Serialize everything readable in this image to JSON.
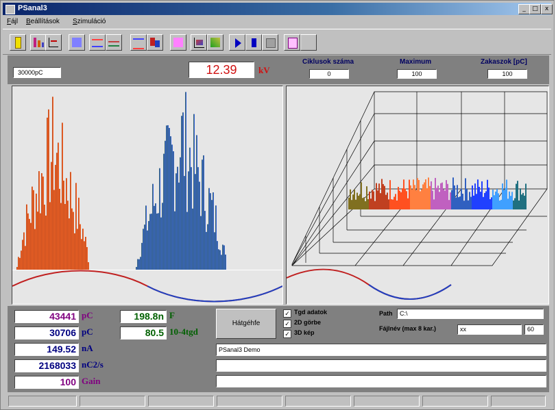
{
  "window": {
    "title": "PSanal3"
  },
  "menu": [
    "Fájl",
    "Beállítások",
    "Szimuláció"
  ],
  "toolbar": {
    "icons": [
      "info-icon",
      "bar-chart-icon",
      "line-chart-icon",
      "3d-view-icon",
      "phase-icon",
      "sine-icon",
      "spectrum-icon",
      "filter-icon",
      "color-icon",
      "trend-icon",
      "scatter-icon",
      "play-icon",
      "stop-icon",
      "grid-icon",
      "print-icon",
      "blank-icon"
    ]
  },
  "header": {
    "range_value": "30000pC",
    "voltage_value": "12.39",
    "voltage_unit": "kV",
    "cycle_count_label": "Ciklusok száma",
    "cycle_count_value": "0",
    "max_label": "Maximum",
    "max_value": "100",
    "max_pc_label": "Zakaszok [pC]",
    "max_pc_value": "100"
  },
  "readouts": [
    {
      "value": "43441",
      "unit": "pC",
      "color": "#800080"
    },
    {
      "value": "30706",
      "unit": "pC",
      "color": "#000080"
    },
    {
      "value": "149.52",
      "unit": "nA",
      "color": "#000080"
    },
    {
      "value": "2168033",
      "unit": "nC2/s",
      "color": "#000080"
    },
    {
      "value": "100",
      "unit": "Gain",
      "color": "#800080"
    }
  ],
  "green_readouts": [
    {
      "value": "198.8n",
      "unit": "F"
    },
    {
      "value": "80.5",
      "unit": "10-4tgd"
    }
  ],
  "controls": {
    "button_label": "Hátgéhfe",
    "checkboxes": [
      {
        "label": "Tgd adatok",
        "checked": "✓"
      },
      {
        "label": "2D görbe",
        "checked": "✓"
      },
      {
        "label": "3D kép",
        "checked": "✓"
      }
    ],
    "path_label": "Path",
    "path_value": "C:\\",
    "file_label": "Fájlnév (max 8 kar.)",
    "file_value": "xx",
    "file_num": "60",
    "message1": "PSanal3 Demo",
    "message2": "",
    "message3": ""
  },
  "colors": {
    "accent": "#d01010",
    "green": "#006000",
    "blue": "#0000a0"
  }
}
